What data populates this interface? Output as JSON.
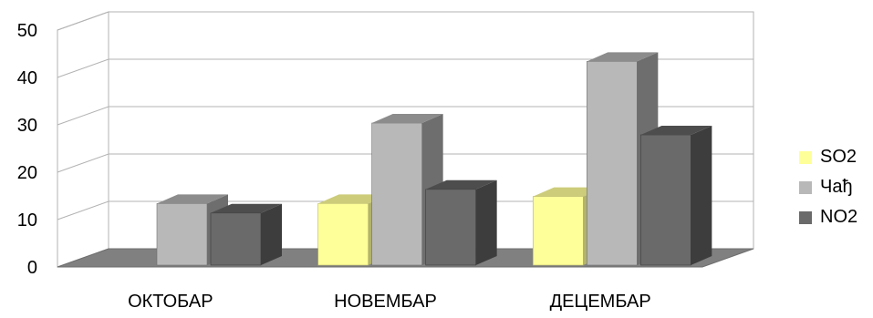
{
  "chart_data": {
    "type": "bar",
    "title": "",
    "xlabel": "",
    "ylabel": "",
    "categories": [
      "ОКТОБАР",
      "НОВЕМБАР",
      "ДЕЦЕМБАР"
    ],
    "series": [
      {
        "name": "SO2",
        "values": [
          null,
          13,
          14.5
        ],
        "color": "#ffff99",
        "side_color": "#b3b36b",
        "top_color": "#cccc7a"
      },
      {
        "name": "Чађ",
        "values": [
          13,
          30,
          43
        ],
        "color": "#b8b8b8",
        "side_color": "#6e6e6e",
        "top_color": "#8c8c8c"
      },
      {
        "name": "NO2",
        "values": [
          11,
          16,
          27.5
        ],
        "color": "#6a6a6a",
        "side_color": "#3d3d3d",
        "top_color": "#4d4d4d"
      }
    ],
    "ylim": [
      0,
      50
    ],
    "yticks": [
      0,
      10,
      20,
      30,
      40,
      50
    ],
    "grid": true,
    "legend_position": "right"
  }
}
